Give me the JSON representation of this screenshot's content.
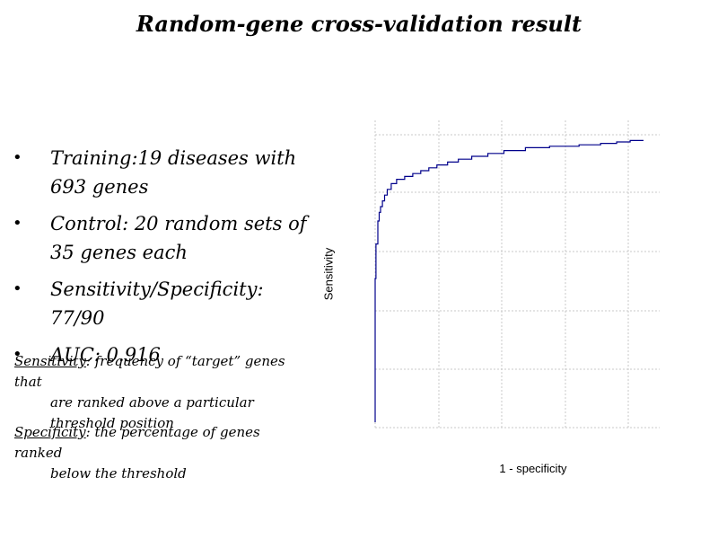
{
  "slide": {
    "title": "Random-gene cross-validation result",
    "bullet_glyph": "•",
    "bullets": [
      "Training:19 diseases with 693 genes",
      "Control: 20 random sets of 35 genes each",
      "Sensitivity/Specificity: 77/90",
      "AUC: 0.916"
    ],
    "definitions": [
      {
        "term": "Sensitivity",
        "text": ": frequency of “target” genes that",
        "cont": "are ranked above a particular threshold position"
      },
      {
        "term": "Specificity",
        "text": ": the percentage of genes ranked",
        "cont": "below the threshold"
      }
    ]
  },
  "chart_data": {
    "type": "line",
    "xlabel": "1 - specificity",
    "ylabel": "Sensitivity",
    "xlim": [
      0,
      1
    ],
    "ylim": [
      0,
      1
    ],
    "grid": true,
    "color": "#00008b",
    "x": [
      0,
      0,
      0,
      0.003,
      0.003,
      0.01,
      0.01,
      0.015,
      0.015,
      0.02,
      0.02,
      0.027,
      0.027,
      0.035,
      0.035,
      0.045,
      0.045,
      0.06,
      0.06,
      0.08,
      0.08,
      0.11,
      0.11,
      0.14,
      0.14,
      0.17,
      0.17,
      0.2,
      0.2,
      0.23,
      0.23,
      0.27,
      0.27,
      0.31,
      0.31,
      0.36,
      0.36,
      0.42,
      0.42,
      0.48,
      0.48,
      0.56,
      0.56,
      0.65,
      0.65,
      0.76,
      0.76,
      0.84,
      0.84,
      0.9,
      0.9,
      0.95,
      0.95,
      1.0
    ],
    "y": [
      0,
      0.5,
      0.5,
      0.5,
      0.62,
      0.62,
      0.7,
      0.7,
      0.73,
      0.73,
      0.75,
      0.75,
      0.77,
      0.77,
      0.79,
      0.79,
      0.81,
      0.81,
      0.83,
      0.83,
      0.845,
      0.845,
      0.855,
      0.855,
      0.865,
      0.865,
      0.875,
      0.875,
      0.885,
      0.885,
      0.895,
      0.895,
      0.905,
      0.905,
      0.915,
      0.915,
      0.925,
      0.925,
      0.935,
      0.935,
      0.945,
      0.945,
      0.955,
      0.955,
      0.96,
      0.96,
      0.965,
      0.965,
      0.97,
      0.97,
      0.975,
      0.975,
      0.98,
      0.98
    ]
  }
}
